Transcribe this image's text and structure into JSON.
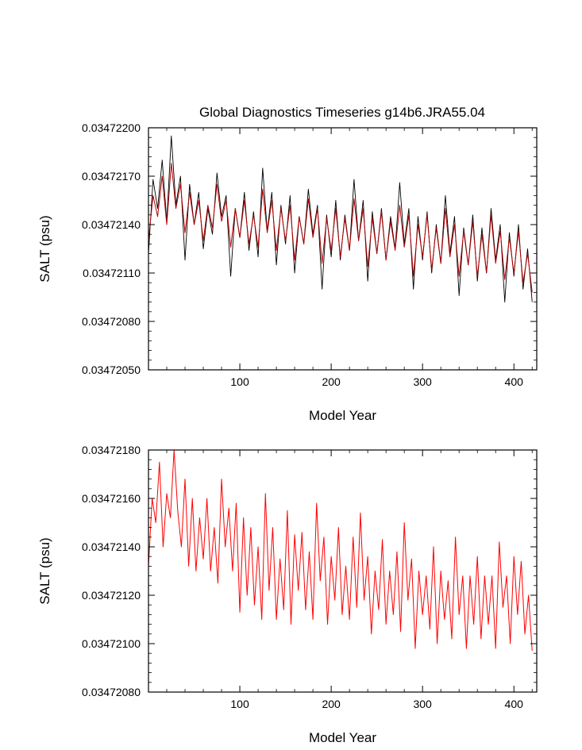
{
  "title": "Global Diagnostics Timeseries g14b6.JRA55.04",
  "colors": {
    "raw": "#000000",
    "smooth_top": "#b00000",
    "smooth_bottom": "#ff0000",
    "axis": "#000000"
  },
  "chart_data": [
    {
      "type": "line",
      "title": "Global Diagnostics Timeseries g14b6.JRA55.04",
      "xlabel": "Model Year",
      "ylabel": "SALT (psu)",
      "xlim": [
        0,
        425
      ],
      "ylim": [
        0.0347205,
        0.034722
      ],
      "xticks": [
        100,
        200,
        300,
        400
      ],
      "xtick_labels": [
        "100",
        "200",
        "300",
        "400"
      ],
      "yticks": [
        0.0347205,
        0.0347208,
        0.0347211,
        0.0347214,
        0.0347217,
        0.034722
      ],
      "ytick_labels": [
        "0.03472050",
        "0.03472080",
        "0.03472110",
        "0.03472140",
        "0.03472170",
        "0.03472200"
      ],
      "grid": false,
      "series": [
        {
          "role": "monthly-raw",
          "color": "#000000",
          "x": [
            0,
            5,
            10,
            15,
            20,
            25,
            30,
            35,
            40,
            45,
            50,
            55,
            60,
            65,
            70,
            75,
            80,
            85,
            90,
            95,
            100,
            105,
            110,
            115,
            120,
            125,
            130,
            135,
            140,
            145,
            150,
            155,
            160,
            165,
            170,
            175,
            180,
            185,
            190,
            195,
            200,
            205,
            210,
            215,
            220,
            225,
            230,
            235,
            240,
            245,
            250,
            255,
            260,
            265,
            270,
            275,
            280,
            285,
            290,
            295,
            300,
            305,
            310,
            315,
            320,
            325,
            330,
            335,
            340,
            345,
            350,
            355,
            360,
            365,
            370,
            375,
            380,
            385,
            390,
            395,
            400,
            405,
            410,
            415,
            420
          ],
          "y": [
            0.03472122,
            0.03472168,
            0.0347215,
            0.0347218,
            0.03472142,
            0.03472195,
            0.03472152,
            0.0347217,
            0.03472118,
            0.03472165,
            0.0347214,
            0.0347216,
            0.03472125,
            0.0347215,
            0.03472134,
            0.03472172,
            0.03472145,
            0.03472158,
            0.03472108,
            0.0347215,
            0.03472132,
            0.0347216,
            0.03472124,
            0.03472148,
            0.0347212,
            0.03472175,
            0.03472136,
            0.0347216,
            0.03472115,
            0.03472152,
            0.03472128,
            0.03472158,
            0.0347211,
            0.03472145,
            0.03472128,
            0.03472162,
            0.03472134,
            0.03472152,
            0.034721,
            0.03472146,
            0.0347212,
            0.03472155,
            0.03472118,
            0.03472146,
            0.03472124,
            0.03472168,
            0.0347213,
            0.03472155,
            0.03472105,
            0.03472148,
            0.03472122,
            0.0347215,
            0.03472118,
            0.03472145,
            0.03472125,
            0.03472166,
            0.03472128,
            0.0347215,
            0.034721,
            0.03472145,
            0.03472118,
            0.03472148,
            0.0347211,
            0.0347214,
            0.03472116,
            0.03472158,
            0.03472122,
            0.03472145,
            0.03472096,
            0.03472138,
            0.03472115,
            0.03472146,
            0.03472105,
            0.03472138,
            0.0347211,
            0.0347215,
            0.03472118,
            0.0347214,
            0.03472092,
            0.03472135,
            0.03472108,
            0.0347214,
            0.034721,
            0.03472125,
            0.03472092
          ],
          "x_note_points": 85
        },
        {
          "role": "annual-mean",
          "color": "#b00000",
          "x": [
            0,
            5,
            10,
            15,
            20,
            25,
            30,
            35,
            40,
            45,
            50,
            55,
            60,
            65,
            70,
            75,
            80,
            85,
            90,
            95,
            100,
            105,
            110,
            115,
            120,
            125,
            130,
            135,
            140,
            145,
            150,
            155,
            160,
            165,
            170,
            175,
            180,
            185,
            190,
            195,
            200,
            205,
            210,
            215,
            220,
            225,
            230,
            235,
            240,
            245,
            250,
            255,
            260,
            265,
            270,
            275,
            280,
            285,
            290,
            295,
            300,
            305,
            310,
            315,
            320,
            325,
            330,
            335,
            340,
            345,
            350,
            355,
            360,
            365,
            370,
            375,
            380,
            385,
            390,
            395,
            400,
            405,
            410,
            415,
            420
          ],
          "y": [
            0.0347213,
            0.03472158,
            0.03472145,
            0.0347217,
            0.0347214,
            0.03472178,
            0.0347215,
            0.03472165,
            0.03472135,
            0.0347216,
            0.0347214,
            0.03472155,
            0.0347213,
            0.03472152,
            0.03472138,
            0.03472165,
            0.03472142,
            0.03472155,
            0.03472126,
            0.0347215,
            0.03472132,
            0.03472155,
            0.03472128,
            0.03472146,
            0.03472126,
            0.03472162,
            0.03472135,
            0.03472155,
            0.03472124,
            0.0347215,
            0.0347213,
            0.03472152,
            0.03472118,
            0.03472145,
            0.03472128,
            0.03472156,
            0.03472132,
            0.0347215,
            0.03472116,
            0.03472144,
            0.03472124,
            0.0347215,
            0.0347212,
            0.03472144,
            0.03472124,
            0.03472156,
            0.0347213,
            0.0347215,
            0.03472114,
            0.03472144,
            0.03472122,
            0.03472148,
            0.03472118,
            0.03472142,
            0.03472124,
            0.03472152,
            0.03472126,
            0.03472146,
            0.03472108,
            0.0347214,
            0.0347212,
            0.03472146,
            0.03472112,
            0.03472138,
            0.03472116,
            0.0347215,
            0.0347212,
            0.0347214,
            0.03472108,
            0.03472136,
            0.03472115,
            0.03472142,
            0.03472108,
            0.03472134,
            0.0347211,
            0.03472146,
            0.03472116,
            0.03472136,
            0.03472106,
            0.03472132,
            0.0347211,
            0.03472136,
            0.03472104,
            0.03472122,
            0.03472098
          ]
        }
      ]
    },
    {
      "type": "line",
      "title": "",
      "xlabel": "Model Year",
      "ylabel": "SALT (psu)",
      "xlim": [
        0,
        425
      ],
      "ylim": [
        0.0347208,
        0.0347218
      ],
      "xticks": [
        100,
        200,
        300,
        400
      ],
      "xtick_labels": [
        "100",
        "200",
        "300",
        "400"
      ],
      "yticks": [
        0.0347208,
        0.034721,
        0.0347212,
        0.0347214,
        0.0347216,
        0.0347218
      ],
      "ytick_labels": [
        "0.03472080",
        "0.03472100",
        "0.03472120",
        "0.03472140",
        "0.03472160",
        "0.03472180"
      ],
      "grid": false,
      "series": [
        {
          "role": "annual-mean",
          "color": "#ff0000",
          "x": [
            0,
            4,
            8,
            12,
            16,
            20,
            24,
            28,
            32,
            36,
            40,
            44,
            48,
            52,
            56,
            60,
            64,
            68,
            72,
            76,
            80,
            84,
            88,
            92,
            96,
            100,
            104,
            108,
            112,
            116,
            120,
            124,
            128,
            132,
            136,
            140,
            144,
            148,
            152,
            156,
            160,
            164,
            168,
            172,
            176,
            180,
            184,
            188,
            192,
            196,
            200,
            204,
            208,
            212,
            216,
            220,
            224,
            228,
            232,
            236,
            240,
            244,
            248,
            252,
            256,
            260,
            264,
            268,
            272,
            276,
            280,
            284,
            288,
            292,
            296,
            300,
            304,
            308,
            312,
            316,
            320,
            324,
            328,
            332,
            336,
            340,
            344,
            348,
            352,
            356,
            360,
            364,
            368,
            372,
            376,
            380,
            384,
            388,
            392,
            396,
            400,
            404,
            408,
            412,
            416,
            420
          ],
          "y": [
            0.03472132,
            0.0347216,
            0.0347215,
            0.03472175,
            0.0347214,
            0.03472162,
            0.03472152,
            0.0347218,
            0.03472155,
            0.0347214,
            0.03472168,
            0.03472132,
            0.0347216,
            0.0347213,
            0.03472152,
            0.03472135,
            0.0347216,
            0.0347213,
            0.03472148,
            0.03472125,
            0.03472168,
            0.0347214,
            0.03472156,
            0.0347213,
            0.03472158,
            0.03472113,
            0.03472152,
            0.0347212,
            0.03472148,
            0.03472116,
            0.0347214,
            0.0347211,
            0.03472162,
            0.03472122,
            0.03472148,
            0.0347211,
            0.03472135,
            0.03472114,
            0.03472155,
            0.03472108,
            0.03472145,
            0.03472122,
            0.03472146,
            0.03472114,
            0.03472138,
            0.0347211,
            0.03472158,
            0.03472126,
            0.03472144,
            0.03472108,
            0.03472136,
            0.03472118,
            0.03472148,
            0.03472112,
            0.03472132,
            0.0347211,
            0.03472144,
            0.03472115,
            0.03472154,
            0.03472118,
            0.03472136,
            0.03472104,
            0.0347213,
            0.03472114,
            0.03472143,
            0.03472108,
            0.0347213,
            0.03472112,
            0.03472138,
            0.03472105,
            0.0347215,
            0.03472118,
            0.03472135,
            0.03472098,
            0.0347213,
            0.03472112,
            0.03472128,
            0.03472106,
            0.0347214,
            0.034721,
            0.0347213,
            0.0347211,
            0.03472126,
            0.03472102,
            0.03472144,
            0.03472112,
            0.03472128,
            0.03472098,
            0.03472128,
            0.03472108,
            0.03472136,
            0.03472102,
            0.03472128,
            0.03472108,
            0.03472128,
            0.03472098,
            0.03472142,
            0.03472115,
            0.03472128,
            0.034721,
            0.03472136,
            0.03472112,
            0.03472134,
            0.03472104,
            0.0347212,
            0.03472097
          ]
        }
      ]
    }
  ]
}
